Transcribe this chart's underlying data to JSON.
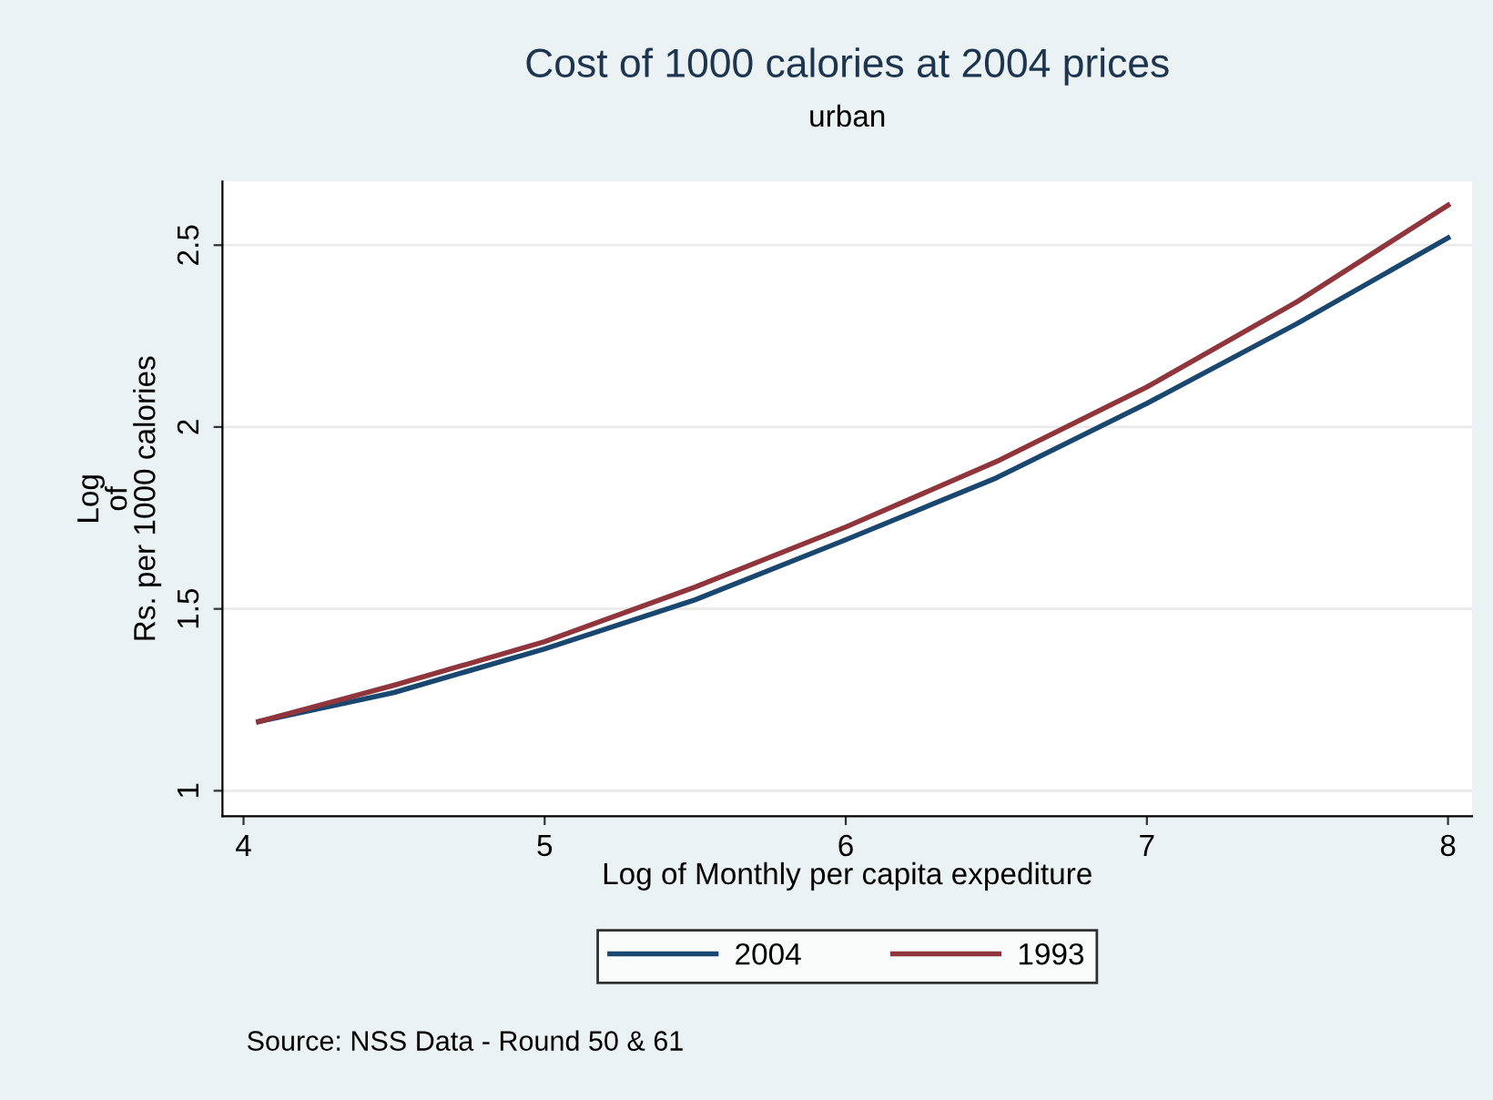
{
  "chart_data": {
    "type": "line",
    "title": "Cost of 1000 calories at 2004 prices",
    "subtitle": "urban",
    "xlabel": "Log of Monthly per capita expediture",
    "ylabel": "Log\nof\nRs. per 1000 calories",
    "series": [
      {
        "name": "2004",
        "color": "#1a476f",
        "x": [
          4.05,
          4.5,
          5,
          5.5,
          6,
          6.5,
          7,
          7.5,
          8
        ],
        "values": [
          1.19,
          1.27,
          1.39,
          1.525,
          1.69,
          1.86,
          2.065,
          2.285,
          2.52
        ]
      },
      {
        "name": "1993",
        "color": "#90353b",
        "x": [
          4.05,
          4.5,
          5,
          5.5,
          6,
          6.5,
          7,
          7.5,
          8
        ],
        "values": [
          1.19,
          1.29,
          1.41,
          1.56,
          1.725,
          1.905,
          2.11,
          2.345,
          2.61
        ]
      }
    ],
    "xlim": [
      3.93,
      8.08
    ],
    "ylim": [
      0.93,
      2.675
    ],
    "xticks": [
      4,
      5,
      6,
      7,
      8
    ],
    "yticks": [
      1,
      1.5,
      2,
      2.5
    ],
    "grid": "y",
    "legend": "bottom",
    "marker": "none",
    "line_style": "solid",
    "annotations": [
      "Source: NSS Data - Round 50 & 61"
    ]
  }
}
